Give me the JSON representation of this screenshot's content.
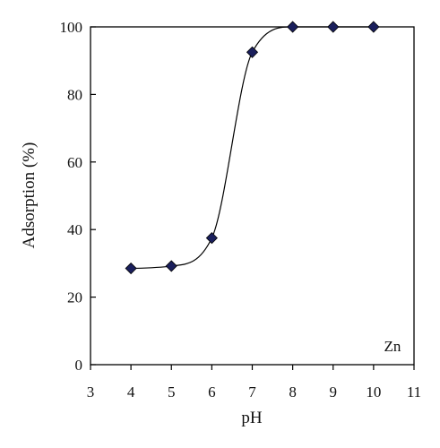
{
  "chart_data": {
    "type": "scatter",
    "title": "",
    "xlabel": "pH",
    "ylabel": "Adsorption (%)",
    "xlim": [
      3,
      11
    ],
    "ylim": [
      0,
      100
    ],
    "xticks": [
      "3",
      "4",
      "5",
      "6",
      "7",
      "8",
      "9",
      "10",
      "11"
    ],
    "yticks": [
      "0",
      "20",
      "40",
      "60",
      "80",
      "100"
    ],
    "annotation": "Zn",
    "grid": false,
    "legend": "none",
    "marker": "diamond",
    "marker_color": "#1a1f5c",
    "fit_curve": "smooth sigmoid line through points",
    "series": [
      {
        "x": [
          4,
          5,
          6,
          7,
          8,
          9,
          10
        ],
        "y": [
          28.5,
          29.2,
          37.5,
          92.5,
          100,
          100,
          100
        ]
      }
    ]
  }
}
